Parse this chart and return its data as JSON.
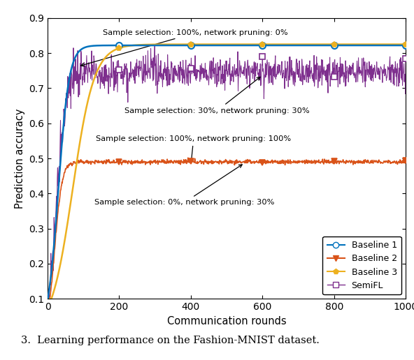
{
  "title": "",
  "xlabel": "Communication rounds",
  "ylabel": "Prediction accuracy",
  "xlim": [
    0,
    1000
  ],
  "ylim": [
    0.1,
    0.9
  ],
  "yticks": [
    0.1,
    0.2,
    0.3,
    0.4,
    0.5,
    0.6,
    0.7,
    0.8,
    0.9
  ],
  "xticks": [
    0,
    200,
    400,
    600,
    800,
    1000
  ],
  "baseline1_color": "#0072BD",
  "baseline2_color": "#D95319",
  "baseline3_color": "#EDB120",
  "semifl_color": "#7E2F8E",
  "legend_entries": [
    "Baseline 1",
    "Baseline 2",
    "Baseline 3",
    "SemiFL"
  ],
  "marker_rounds": [
    200,
    400,
    600,
    800,
    1000
  ],
  "caption": "3.  Learning performance on the Fashion-MNIST dataset."
}
